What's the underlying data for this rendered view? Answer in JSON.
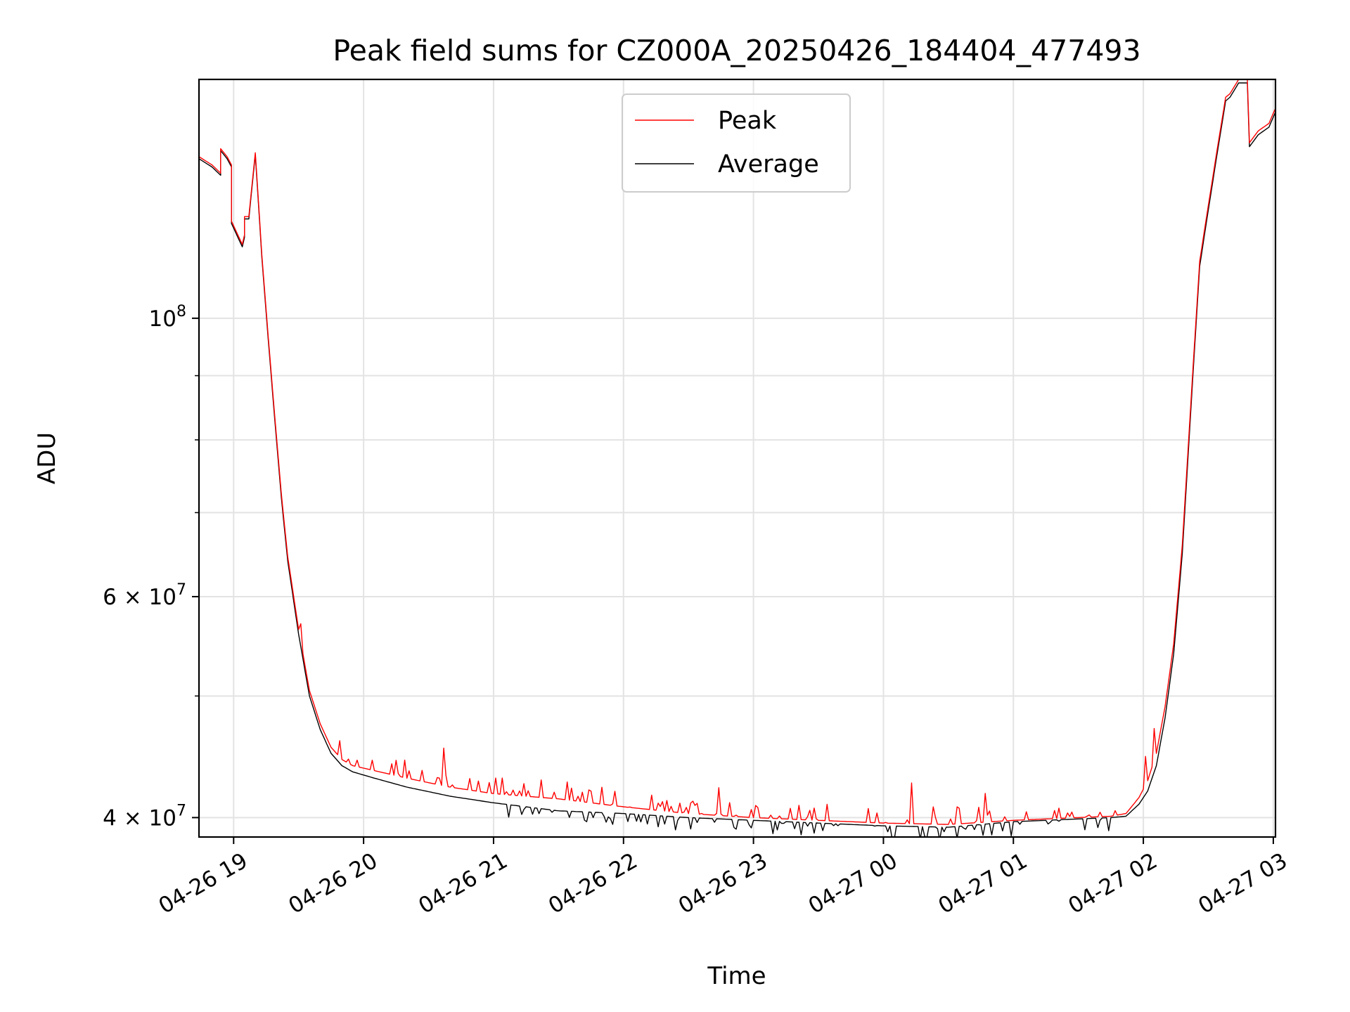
{
  "chart_data": {
    "type": "line",
    "title": "Peak field sums for CZ000A_20250426_184404_477493",
    "xlabel": "Time",
    "ylabel": "ADU",
    "yscale": "log",
    "ylim": [
      38600000,
      155000000
    ],
    "xlim": [
      "2025-04-26 18:44",
      "2025-04-27 03:01"
    ],
    "grid": true,
    "legend": {
      "position": "top-center",
      "entries": [
        "Peak",
        "Average"
      ]
    },
    "x_ticks": [
      "04-26 19",
      "04-26 20",
      "04-26 21",
      "04-26 22",
      "04-26 23",
      "04-27 00",
      "04-27 01",
      "04-27 02",
      "04-27 03"
    ],
    "y_ticks": [
      {
        "value": 40000000,
        "base": "4",
        "exp": "7",
        "label": "4 × 10^7",
        "mult": true
      },
      {
        "value": 60000000,
        "base": "6",
        "exp": "7",
        "label": "6 × 10^7",
        "mult": true
      },
      {
        "value": 100000000,
        "base": "10",
        "exp": "8",
        "label": "10^8",
        "mult": false
      }
    ],
    "minor_y_ticks": [
      50000000,
      70000000,
      80000000,
      90000000
    ],
    "series": [
      {
        "name": "Average",
        "color": "#000000",
        "x": [
          "2025-04-26 18:44",
          "2025-04-26 18:50",
          "2025-04-26 18:54",
          "2025-04-26 18:54",
          "2025-04-26 18:57",
          "2025-04-26 18:59",
          "2025-04-26 18:59",
          "2025-04-26 19:04",
          "2025-04-26 19:05",
          "2025-04-26 19:05",
          "2025-04-26 19:07",
          "2025-04-26 19:10",
          "2025-04-26 19:13",
          "2025-04-26 19:16",
          "2025-04-26 19:19",
          "2025-04-26 19:22",
          "2025-04-26 19:25",
          "2025-04-26 19:30",
          "2025-04-26 19:35",
          "2025-04-26 19:40",
          "2025-04-26 19:45",
          "2025-04-26 19:50",
          "2025-04-26 19:55",
          "2025-04-26 20:05",
          "2025-04-26 20:20",
          "2025-04-26 20:40",
          "2025-04-26 21:00",
          "2025-04-26 21:30",
          "2025-04-26 22:00",
          "2025-04-26 22:30",
          "2025-04-26 23:00",
          "2025-04-26 23:30",
          "2025-04-27 00:00",
          "2025-04-27 00:30",
          "2025-04-27 01:00",
          "2025-04-27 01:30",
          "2025-04-27 01:45",
          "2025-04-27 01:52",
          "2025-04-27 01:58",
          "2025-04-27 02:02",
          "2025-04-27 02:06",
          "2025-04-27 02:10",
          "2025-04-27 02:14",
          "2025-04-27 02:18",
          "2025-04-27 02:22",
          "2025-04-27 02:26",
          "2025-04-27 02:30",
          "2025-04-27 02:34",
          "2025-04-27 02:38",
          "2025-04-27 02:40",
          "2025-04-27 02:44",
          "2025-04-27 02:48",
          "2025-04-27 02:49",
          "2025-04-27 02:53",
          "2025-04-27 02:58",
          "2025-04-27 03:01"
        ],
        "y": [
          134000000,
          132000000,
          130000000,
          136000000,
          134000000,
          132000000,
          119000000,
          114000000,
          116000000,
          120000000,
          120000000,
          135000000,
          112000000,
          96000000,
          83000000,
          72000000,
          64000000,
          56000000,
          50000000,
          47000000,
          45000000,
          44000000,
          43500000,
          43000000,
          42300000,
          41600000,
          41100000,
          40500000,
          40300000,
          40000000,
          39800000,
          39600000,
          39400000,
          39300000,
          39700000,
          39900000,
          40000000,
          40100000,
          41000000,
          42000000,
          44000000,
          48000000,
          54000000,
          65000000,
          85000000,
          110000000,
          122000000,
          135000000,
          149000000,
          150000000,
          154000000,
          154000000,
          137000000,
          140000000,
          142000000,
          146000000
        ]
      },
      {
        "name": "Peak",
        "color": "#ff0000",
        "x": [
          "2025-04-26 18:44",
          "2025-04-26 18:50",
          "2025-04-26 18:54",
          "2025-04-26 18:54",
          "2025-04-26 18:57",
          "2025-04-26 18:59",
          "2025-04-26 18:59",
          "2025-04-26 19:04",
          "2025-04-26 19:05",
          "2025-04-26 19:05",
          "2025-04-26 19:07",
          "2025-04-26 19:10",
          "2025-04-26 19:13",
          "2025-04-26 19:16",
          "2025-04-26 19:19",
          "2025-04-26 19:22",
          "2025-04-26 19:25",
          "2025-04-26 19:30",
          "2025-04-26 19:35",
          "2025-04-26 19:40",
          "2025-04-26 19:45",
          "2025-04-26 19:50",
          "2025-04-26 19:55",
          "2025-04-26 20:05",
          "2025-04-26 20:20",
          "2025-04-26 20:40",
          "2025-04-26 21:00",
          "2025-04-26 21:30",
          "2025-04-26 22:00",
          "2025-04-26 22:30",
          "2025-04-26 23:00",
          "2025-04-26 23:30",
          "2025-04-27 00:00",
          "2025-04-27 00:30",
          "2025-04-27 01:00",
          "2025-04-27 01:30",
          "2025-04-27 01:45",
          "2025-04-27 01:52",
          "2025-04-27 01:58",
          "2025-04-27 02:02",
          "2025-04-27 02:06",
          "2025-04-27 02:10",
          "2025-04-27 02:14",
          "2025-04-27 02:18",
          "2025-04-27 02:22",
          "2025-04-27 02:26",
          "2025-04-27 02:30",
          "2025-04-27 02:34",
          "2025-04-27 02:38",
          "2025-04-27 02:40",
          "2025-04-27 02:44",
          "2025-04-27 02:48",
          "2025-04-27 02:49",
          "2025-04-27 02:53",
          "2025-04-27 02:58",
          "2025-04-27 03:01"
        ],
        "y": [
          134500000,
          132500000,
          130500000,
          136500000,
          134500000,
          132500000,
          119500000,
          114500000,
          116500000,
          120500000,
          120500000,
          135500000,
          112500000,
          96500000,
          83500000,
          72500000,
          64500000,
          56500000,
          50500000,
          47500000,
          45500000,
          44500000,
          44000000,
          43600000,
          43000000,
          42300000,
          41800000,
          41400000,
          40800000,
          40300000,
          40000000,
          39800000,
          39600000,
          39500000,
          39800000,
          40000000,
          40100000,
          40300000,
          41500000,
          42800000,
          45000000,
          49000000,
          55000000,
          66000000,
          86000000,
          111000000,
          123000000,
          136000000,
          150000000,
          151000000,
          155000000,
          155000000,
          138000000,
          141000000,
          143000000,
          147000000
        ]
      }
    ]
  }
}
